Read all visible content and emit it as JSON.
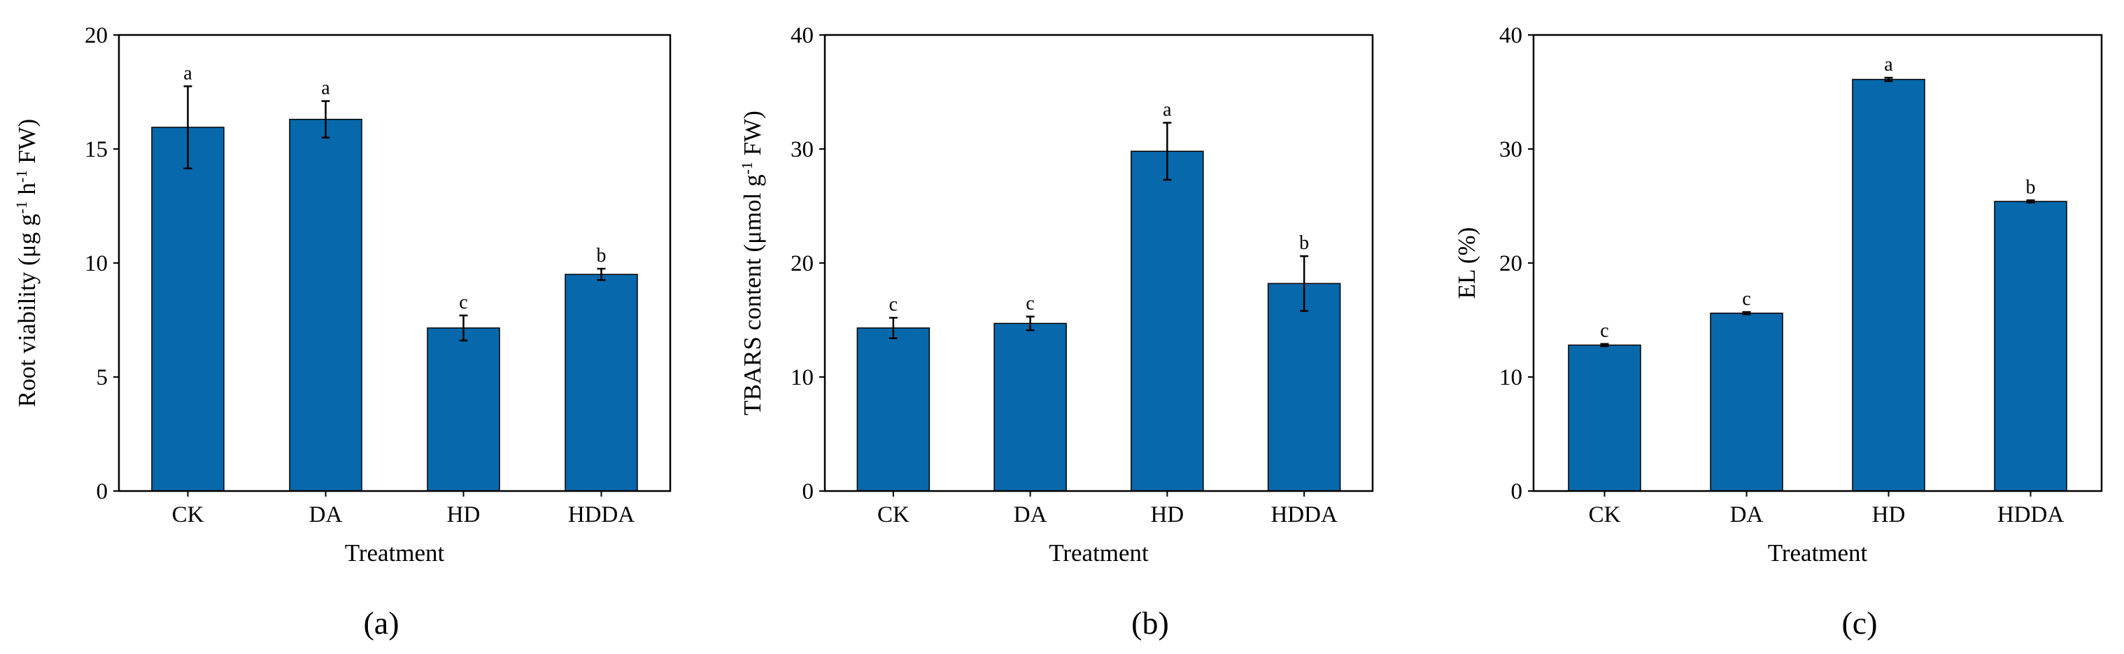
{
  "figure": {
    "bar_color": "#0868ac",
    "axis_color": "#000000"
  },
  "chart_data": [
    {
      "type": "bar",
      "panel_label": "(a)",
      "title": "",
      "xlabel": "Treatment",
      "ylabel_parts": {
        "pre": "Root viability (μg g",
        "sup1": "-1",
        "mid": " h",
        "sup2": "-1",
        "post": " FW)"
      },
      "categories": [
        "CK",
        "DA",
        "HD",
        "HDDA"
      ],
      "values": [
        15.95,
        16.3,
        7.15,
        9.5
      ],
      "errors": [
        1.8,
        0.8,
        0.55,
        0.25
      ],
      "letters": [
        "a",
        "a",
        "c",
        "b"
      ],
      "ylim": [
        0,
        20
      ],
      "yticks": [
        0,
        5,
        10,
        15,
        20
      ]
    },
    {
      "type": "bar",
      "panel_label": "(b)",
      "title": "",
      "xlabel": "Treatment",
      "ylabel_parts": {
        "pre": "TBARS content (μmol g",
        "sup1": "-1",
        "mid": " FW)",
        "sup2": "",
        "post": ""
      },
      "categories": [
        "CK",
        "DA",
        "HD",
        "HDDA"
      ],
      "values": [
        14.3,
        14.7,
        29.8,
        18.2
      ],
      "errors": [
        0.9,
        0.6,
        2.5,
        2.4
      ],
      "letters": [
        "c",
        "c",
        "a",
        "b"
      ],
      "ylim": [
        0,
        40
      ],
      "yticks": [
        0,
        10,
        20,
        30,
        40
      ]
    },
    {
      "type": "bar",
      "panel_label": "(c)",
      "title": "",
      "xlabel": "Treatment",
      "ylabel_parts": {
        "pre": "EL (%)",
        "sup1": "",
        "mid": "",
        "sup2": "",
        "post": ""
      },
      "categories": [
        "CK",
        "DA",
        "HD",
        "HDDA"
      ],
      "values": [
        12.8,
        15.6,
        36.1,
        25.4
      ],
      "errors": [
        0.1,
        0.1,
        0.15,
        0.1
      ],
      "letters": [
        "c",
        "c",
        "a",
        "b"
      ],
      "ylim": [
        0,
        40
      ],
      "yticks": [
        0,
        10,
        20,
        30,
        40
      ]
    }
  ]
}
